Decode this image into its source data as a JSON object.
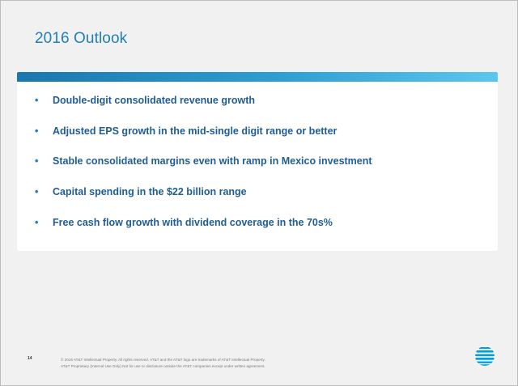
{
  "slide": {
    "title": "2016 Outlook",
    "bullets": [
      "Double-digit consolidated revenue growth",
      "Adjusted EPS growth in the mid-single digit range or better",
      "Stable consolidated margins even with ramp in Mexico investment",
      "Capital spending in the $22 billion range",
      "Free cash flow growth with dividend coverage in the 70s%"
    ],
    "bullet_symbol": "•",
    "page_number": "14",
    "footer": {
      "line1": "© 2016 AT&T Intellectual Property. All rights reserved. AT&T and the AT&T logo are trademarks of AT&T Intellectual Property.",
      "line2": "AT&T Proprietary (Internal Use Only) Not for use or disclosure outside the AT&T companies except under written agreement."
    },
    "logo_icon": "att-globe-icon",
    "colors": {
      "title": "#1f7fb6",
      "bullet_text": "#1f5d92",
      "header_bar_start": "#1a77ad",
      "header_bar_end": "#5cc6ee",
      "logo": "#009fdb"
    }
  }
}
